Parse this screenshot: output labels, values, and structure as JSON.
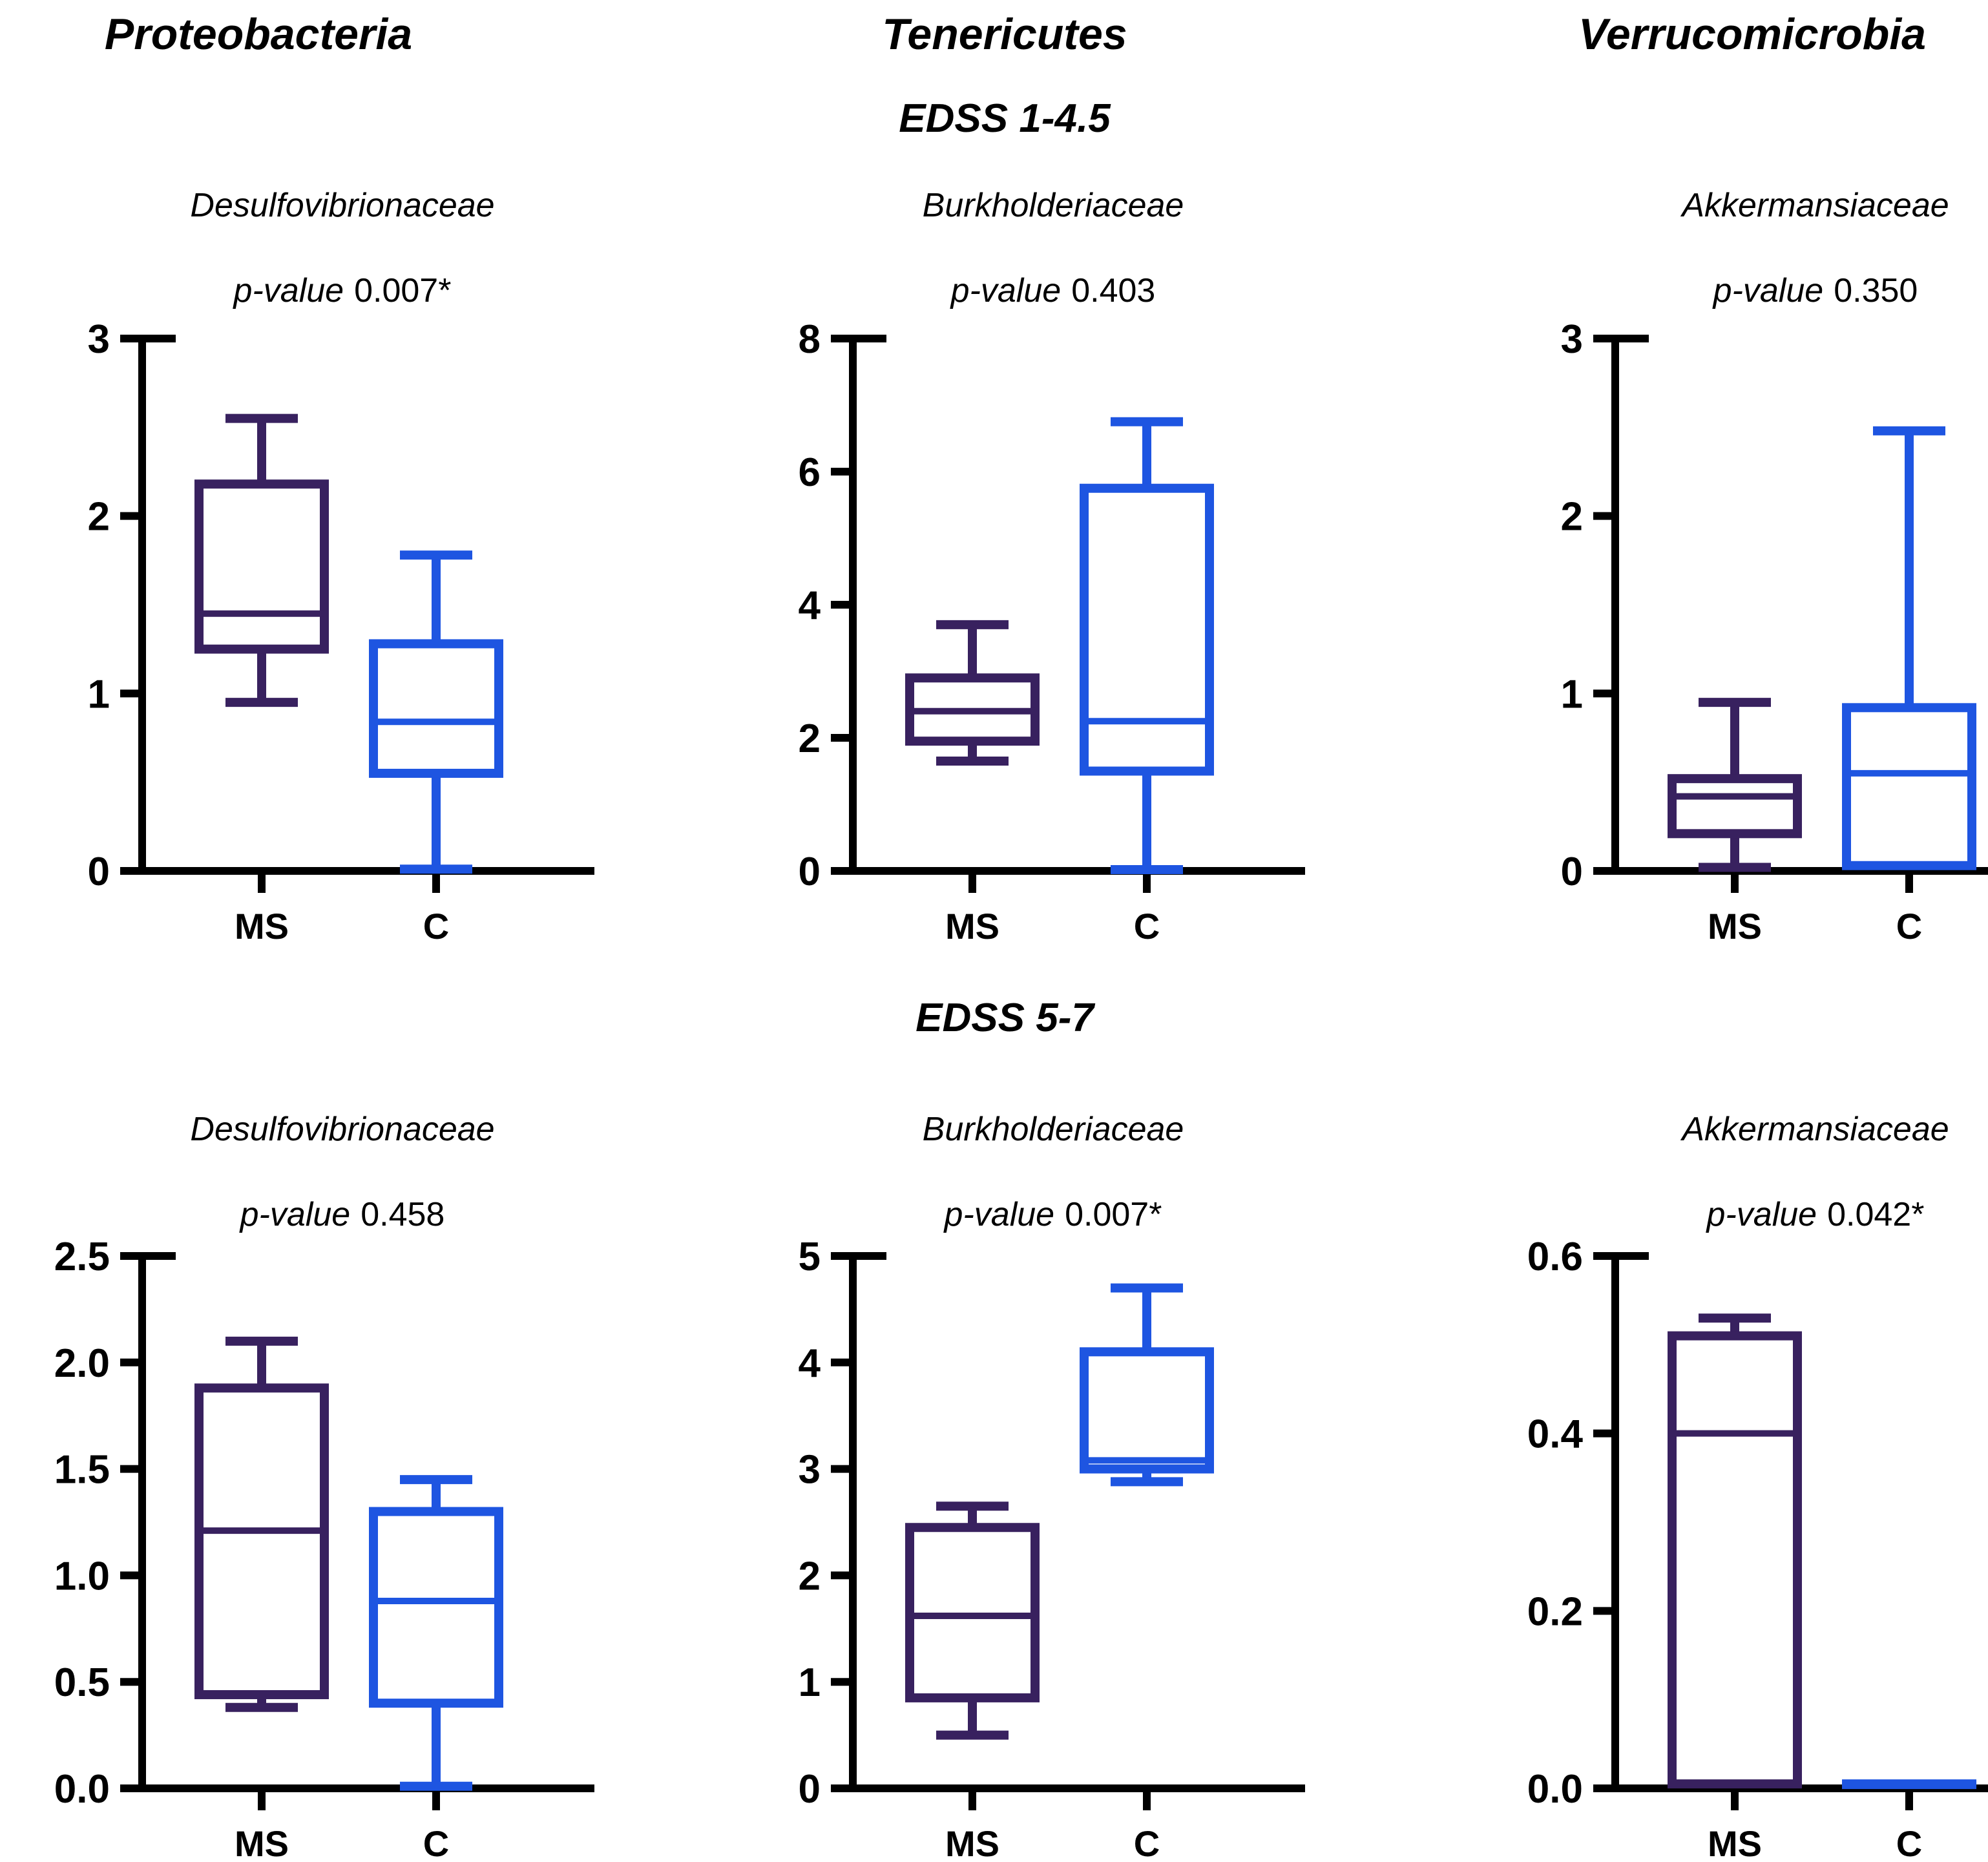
{
  "colors": {
    "ms": "#38215F",
    "c": "#1E55E1",
    "axis": "#000000",
    "text": "#000000"
  },
  "column_titles": [
    "Proteobacteria",
    "Tenericutes",
    "Verrucomicrobia"
  ],
  "row_titles": [
    "EDSS 1-4.5",
    "EDSS 5-7"
  ],
  "group_labels": [
    "MS",
    "C"
  ],
  "chart_data": [
    {
      "type": "box",
      "row": 0,
      "col": 0,
      "family": "Desulfovibrionaceae",
      "p_label": "p-value",
      "p_value": "0.007*",
      "ylim": [
        0,
        3
      ],
      "yticks": [
        {
          "v": 0,
          "t": "0"
        },
        {
          "v": 1,
          "t": "1"
        },
        {
          "v": 2,
          "t": "2"
        },
        {
          "v": 3,
          "t": "3"
        }
      ],
      "series": [
        {
          "name": "MS",
          "color": "ms",
          "min": 0.95,
          "q1": 1.25,
          "median": 1.45,
          "q3": 2.18,
          "max": 2.55
        },
        {
          "name": "C",
          "color": "c",
          "min": 0.01,
          "q1": 0.55,
          "median": 0.84,
          "q3": 1.28,
          "max": 1.78
        }
      ]
    },
    {
      "type": "box",
      "row": 0,
      "col": 1,
      "family": "Burkholderiaceae",
      "p_label": "p-value",
      "p_value": "0.403",
      "ylim": [
        0,
        8
      ],
      "yticks": [
        {
          "v": 0,
          "t": "0"
        },
        {
          "v": 2,
          "t": "2"
        },
        {
          "v": 4,
          "t": "4"
        },
        {
          "v": 6,
          "t": "6"
        },
        {
          "v": 8,
          "t": "8"
        }
      ],
      "series": [
        {
          "name": "MS",
          "color": "ms",
          "min": 1.65,
          "q1": 1.95,
          "median": 2.4,
          "q3": 2.9,
          "max": 3.7
        },
        {
          "name": "C",
          "color": "c",
          "min": 0.02,
          "q1": 1.5,
          "median": 2.25,
          "q3": 5.75,
          "max": 6.75
        }
      ]
    },
    {
      "type": "box",
      "row": 0,
      "col": 2,
      "family": "Akkermansiaceae",
      "p_label": "p-value",
      "p_value": "0.350",
      "ylim": [
        0,
        3
      ],
      "yticks": [
        {
          "v": 0,
          "t": "0"
        },
        {
          "v": 1,
          "t": "1"
        },
        {
          "v": 2,
          "t": "2"
        },
        {
          "v": 3,
          "t": "3"
        }
      ],
      "series": [
        {
          "name": "MS",
          "color": "ms",
          "min": 0.02,
          "q1": 0.21,
          "median": 0.42,
          "q3": 0.52,
          "max": 0.95
        },
        {
          "name": "C",
          "color": "c",
          "min": 0.03,
          "q1": 0.03,
          "median": 0.55,
          "q3": 0.92,
          "max": 2.48
        }
      ]
    },
    {
      "type": "box",
      "row": 1,
      "col": 0,
      "family": "Desulfovibrionaceae",
      "p_label": "p-value",
      "p_value": "0.458",
      "ylim": [
        0,
        2.5
      ],
      "yticks": [
        {
          "v": 0,
          "t": "0.0"
        },
        {
          "v": 0.5,
          "t": "0.5"
        },
        {
          "v": 1,
          "t": "1.0"
        },
        {
          "v": 1.5,
          "t": "1.5"
        },
        {
          "v": 2,
          "t": "2.0"
        },
        {
          "v": 2.5,
          "t": "2.5"
        }
      ],
      "series": [
        {
          "name": "MS",
          "color": "ms",
          "min": 0.38,
          "q1": 0.44,
          "median": 1.21,
          "q3": 1.88,
          "max": 2.1
        },
        {
          "name": "C",
          "color": "c",
          "min": 0.01,
          "q1": 0.4,
          "median": 0.88,
          "q3": 1.3,
          "max": 1.45
        }
      ]
    },
    {
      "type": "box",
      "row": 1,
      "col": 1,
      "family": "Burkholderiaceae",
      "p_label": "p-value",
      "p_value": "0.007*",
      "ylim": [
        0,
        5
      ],
      "yticks": [
        {
          "v": 0,
          "t": "0"
        },
        {
          "v": 1,
          "t": "1"
        },
        {
          "v": 2,
          "t": "2"
        },
        {
          "v": 3,
          "t": "3"
        },
        {
          "v": 4,
          "t": "4"
        },
        {
          "v": 5,
          "t": "5"
        }
      ],
      "series": [
        {
          "name": "MS",
          "color": "ms",
          "min": 0.5,
          "q1": 0.85,
          "median": 1.62,
          "q3": 2.45,
          "max": 2.65
        },
        {
          "name": "C",
          "color": "c",
          "min": 2.88,
          "q1": 3.0,
          "median": 3.08,
          "q3": 4.1,
          "max": 4.7
        }
      ]
    },
    {
      "type": "box",
      "row": 1,
      "col": 2,
      "family": "Akkermansiaceae",
      "p_label": "p-value",
      "p_value": "0.042*",
      "ylim": [
        0,
        0.6
      ],
      "yticks": [
        {
          "v": 0,
          "t": "0.0"
        },
        {
          "v": 0.2,
          "t": "0.2"
        },
        {
          "v": 0.4,
          "t": "0.4"
        },
        {
          "v": 0.6,
          "t": "0.6"
        }
      ],
      "series": [
        {
          "name": "MS",
          "color": "ms",
          "min": 0.005,
          "q1": 0.005,
          "median": 0.4,
          "q3": 0.51,
          "max": 0.53
        },
        {
          "name": "C",
          "color": "c",
          "min": 0.005,
          "q1": 0.005,
          "median": 0.005,
          "q3": 0.005,
          "max": 0.005
        }
      ]
    }
  ]
}
